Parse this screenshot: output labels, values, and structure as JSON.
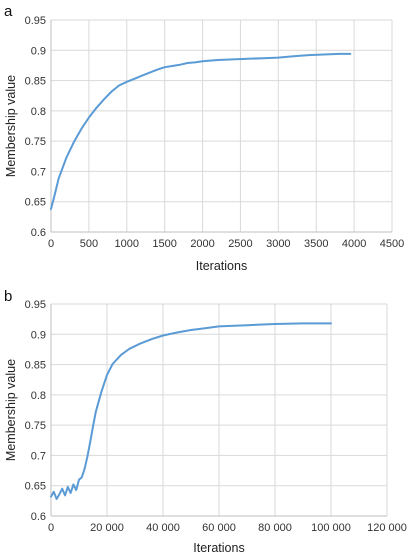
{
  "chart_data": [
    {
      "panel_label": "a",
      "type": "line",
      "title": "",
      "xlabel": "Iterations",
      "ylabel": "Membership value",
      "xlim": [
        0,
        4500
      ],
      "ylim": [
        0.6,
        0.95
      ],
      "x_ticks": [
        "0",
        "500",
        "1000",
        "1500",
        "2000",
        "2500",
        "3000",
        "3500",
        "4000",
        "4500"
      ],
      "y_ticks": [
        "0.6",
        "0.65",
        "0.7",
        "0.75",
        "0.8",
        "0.85",
        "0.9",
        "0.95"
      ],
      "grid": true,
      "color": "#5b9bd5",
      "series": [
        {
          "x": [
            0,
            50,
            100,
            200,
            300,
            400,
            500,
            600,
            700,
            800,
            900,
            1000,
            1100,
            1200,
            1300,
            1400,
            1500,
            1600,
            1700,
            1800,
            1900,
            2000,
            2200,
            2400,
            2600,
            2800,
            3000,
            3200,
            3400,
            3600,
            3800,
            3950
          ],
          "y": [
            0.638,
            0.662,
            0.688,
            0.722,
            0.748,
            0.77,
            0.789,
            0.805,
            0.819,
            0.832,
            0.842,
            0.848,
            0.853,
            0.858,
            0.863,
            0.868,
            0.872,
            0.874,
            0.876,
            0.879,
            0.88,
            0.882,
            0.884,
            0.885,
            0.886,
            0.887,
            0.888,
            0.89,
            0.892,
            0.893,
            0.894,
            0.894
          ]
        }
      ]
    },
    {
      "panel_label": "b",
      "type": "line",
      "title": "",
      "xlabel": "Iterations",
      "ylabel": "Membership value",
      "xlim": [
        0,
        120000
      ],
      "ylim": [
        0.6,
        0.95
      ],
      "x_ticks": [
        "0",
        "20 000",
        "40 000",
        "60 000",
        "80 000",
        "100 000",
        "120 000"
      ],
      "y_ticks": [
        "0.6",
        "0.65",
        "0.7",
        "0.75",
        "0.8",
        "0.85",
        "0.9",
        "0.95"
      ],
      "grid": true,
      "color": "#5b9bd5",
      "series": [
        {
          "x": [
            0,
            1000,
            2000,
            3000,
            4000,
            5000,
            6000,
            7000,
            8000,
            9000,
            10000,
            11000,
            12000,
            13000,
            14000,
            15000,
            16000,
            18000,
            20000,
            22000,
            25000,
            28000,
            32000,
            36000,
            40000,
            45000,
            50000,
            55000,
            60000,
            70000,
            80000,
            90000,
            100000
          ],
          "y": [
            0.632,
            0.64,
            0.628,
            0.636,
            0.645,
            0.634,
            0.648,
            0.638,
            0.652,
            0.643,
            0.66,
            0.664,
            0.678,
            0.698,
            0.722,
            0.748,
            0.772,
            0.805,
            0.833,
            0.851,
            0.866,
            0.876,
            0.885,
            0.892,
            0.898,
            0.903,
            0.907,
            0.91,
            0.913,
            0.915,
            0.917,
            0.918,
            0.918
          ]
        }
      ]
    }
  ]
}
